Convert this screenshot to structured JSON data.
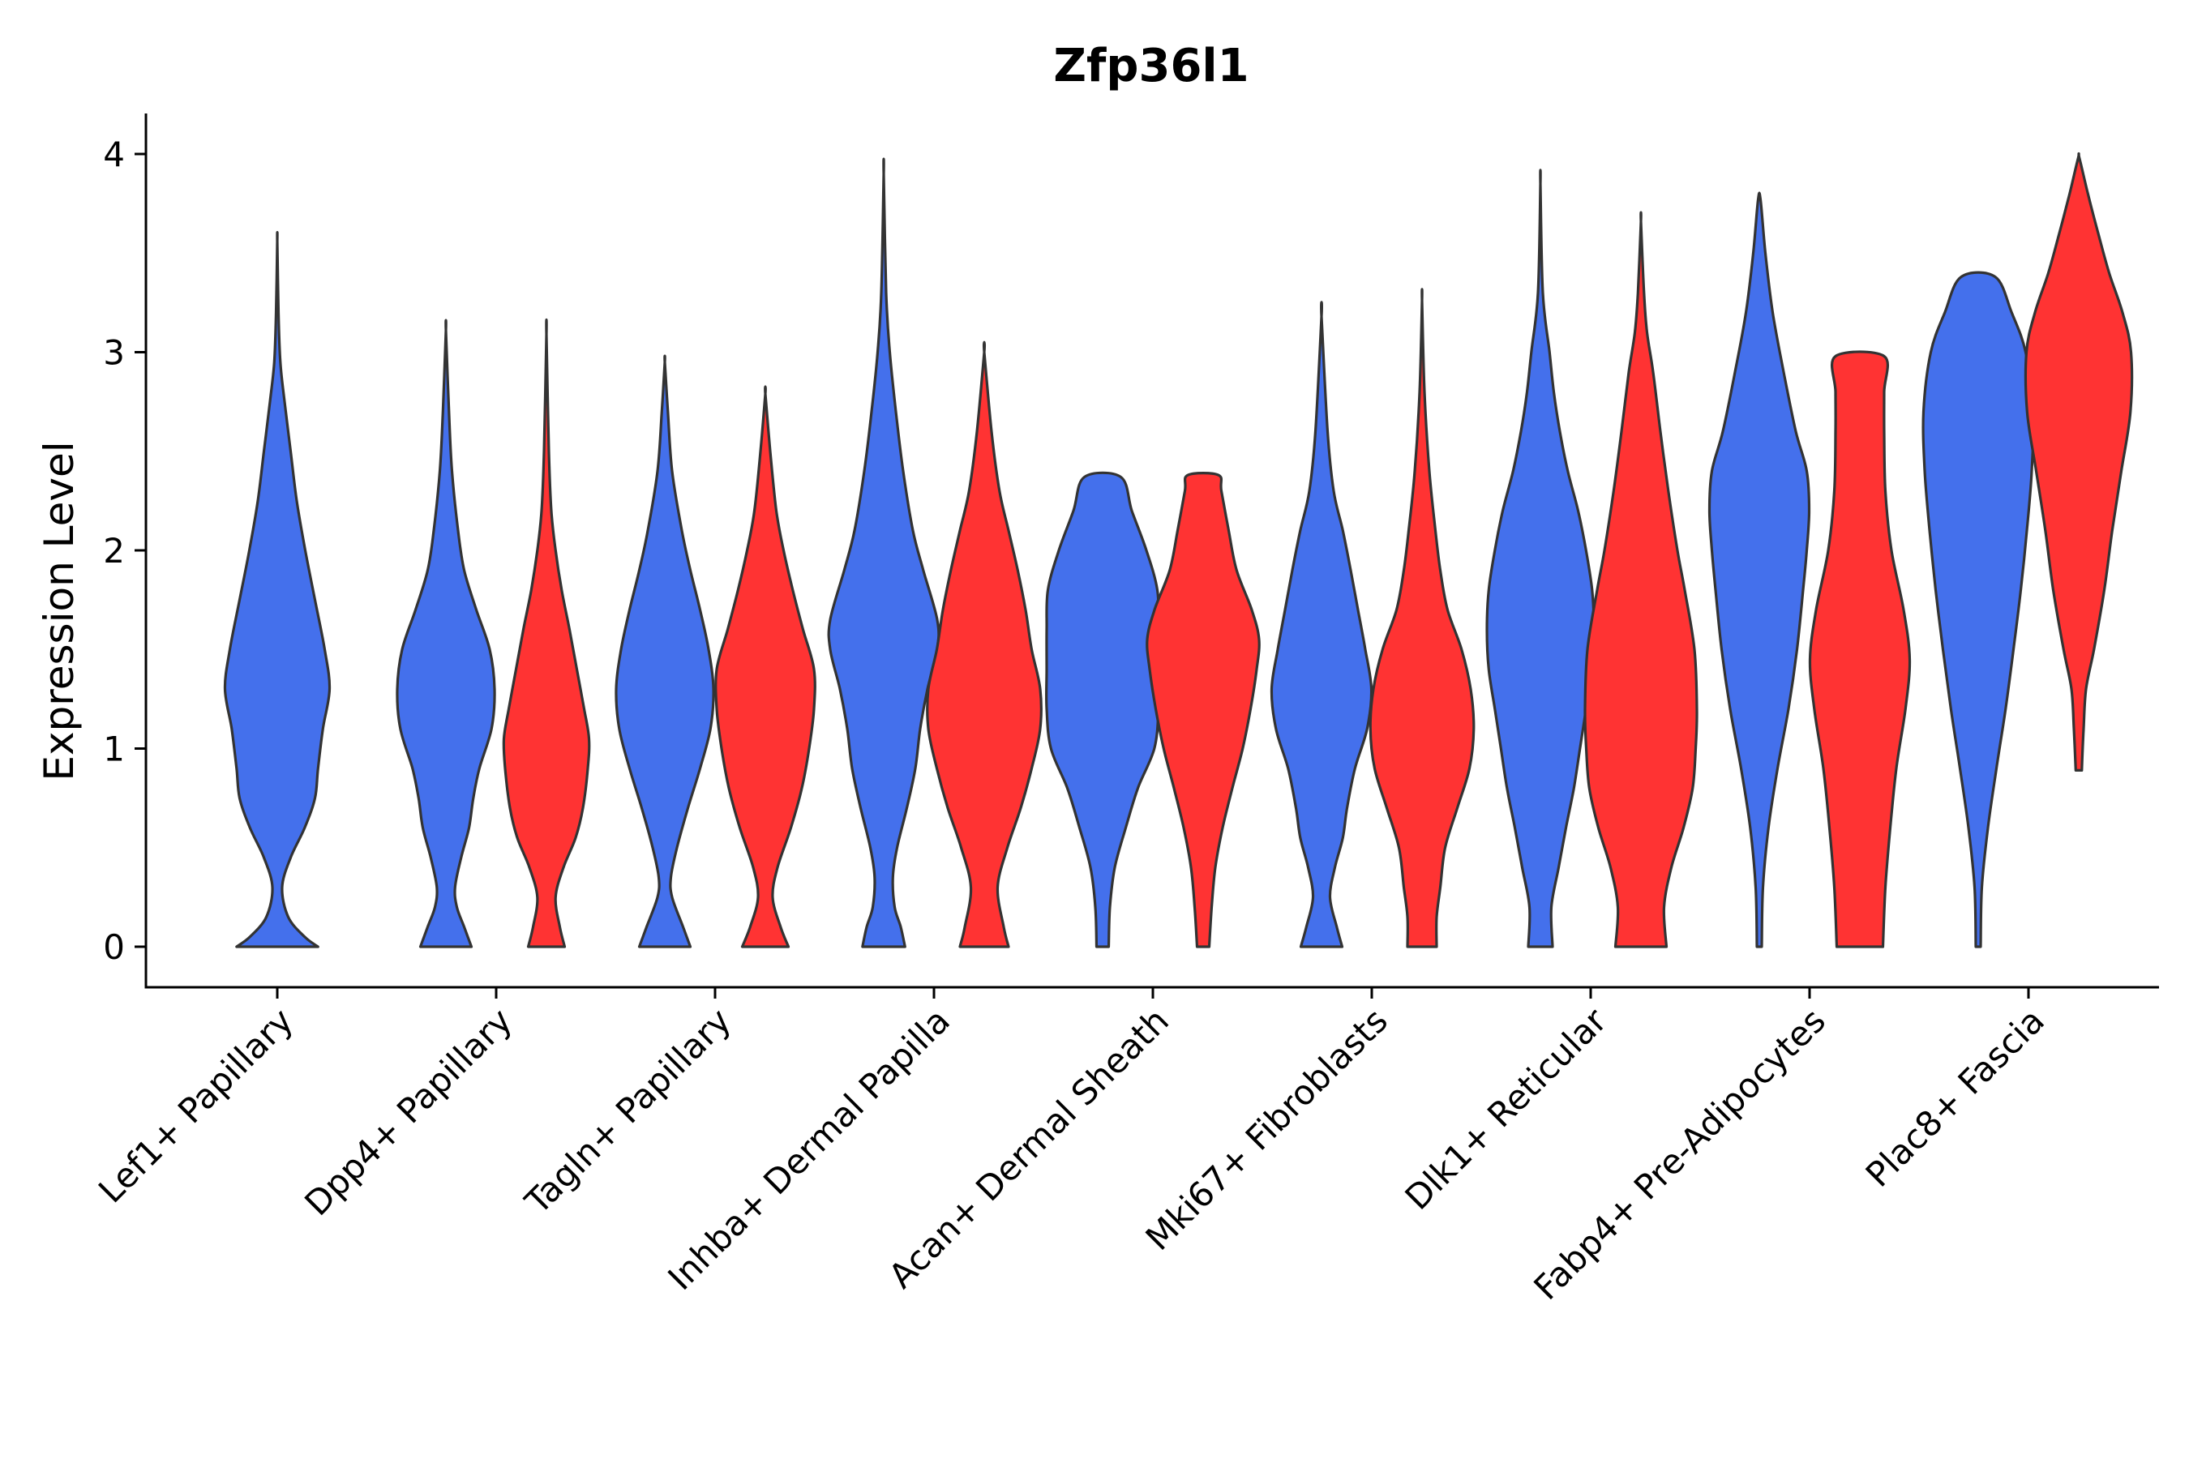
{
  "chart_data": {
    "type": "violin",
    "title": "Zfp36l1",
    "xlabel": "",
    "ylabel": "Expression Level",
    "ylim": [
      -0.2,
      4.2
    ],
    "yticks": [
      0,
      1,
      2,
      3,
      4
    ],
    "grid": false,
    "legend": "none",
    "colors": {
      "blue": "#4470EC",
      "red": "#FF3333"
    },
    "categories": [
      "Lef1+ Papillary",
      "Dpp4+ Papillary",
      "Tagln+ Papillary",
      "Inhba+ Dermal Papilla",
      "Acan+ Dermal Sheath",
      "Mki67+ Fibroblasts",
      "Dlk1+ Reticular",
      "Fabp4+ Pre-Adipocytes",
      "Plac8+ Fascia"
    ],
    "violins": [
      {
        "category": 0,
        "color": "blue",
        "min": 0,
        "max": 3.56,
        "profile": [
          [
            0,
            0.67
          ],
          [
            0.05,
            0.45
          ],
          [
            0.15,
            0.18
          ],
          [
            0.3,
            0.08
          ],
          [
            0.45,
            0.22
          ],
          [
            0.6,
            0.45
          ],
          [
            0.75,
            0.62
          ],
          [
            0.9,
            0.67
          ],
          [
            1.1,
            0.75
          ],
          [
            1.3,
            0.86
          ],
          [
            1.5,
            0.78
          ],
          [
            1.75,
            0.62
          ],
          [
            2,
            0.46
          ],
          [
            2.25,
            0.32
          ],
          [
            2.5,
            0.22
          ],
          [
            2.75,
            0.12
          ],
          [
            2.95,
            0.05
          ],
          [
            3.2,
            0.02
          ],
          [
            3.56,
            0
          ]
        ]
      },
      {
        "category": 1,
        "color": "blue",
        "min": 0,
        "max": 3.11,
        "profile": [
          [
            0,
            0.42
          ],
          [
            0.1,
            0.3
          ],
          [
            0.2,
            0.18
          ],
          [
            0.3,
            0.15
          ],
          [
            0.45,
            0.25
          ],
          [
            0.6,
            0.38
          ],
          [
            0.75,
            0.45
          ],
          [
            0.9,
            0.55
          ],
          [
            1.1,
            0.75
          ],
          [
            1.3,
            0.8
          ],
          [
            1.5,
            0.72
          ],
          [
            1.7,
            0.5
          ],
          [
            1.9,
            0.3
          ],
          [
            2.1,
            0.2
          ],
          [
            2.4,
            0.1
          ],
          [
            2.7,
            0.05
          ],
          [
            3.11,
            0
          ]
        ]
      },
      {
        "category": 1,
        "color": "red",
        "min": 0,
        "max": 3.09,
        "profile": [
          [
            0,
            0.3
          ],
          [
            0.1,
            0.22
          ],
          [
            0.25,
            0.15
          ],
          [
            0.4,
            0.28
          ],
          [
            0.55,
            0.48
          ],
          [
            0.7,
            0.6
          ],
          [
            0.9,
            0.68
          ],
          [
            1.05,
            0.7
          ],
          [
            1.2,
            0.62
          ],
          [
            1.4,
            0.5
          ],
          [
            1.6,
            0.38
          ],
          [
            1.8,
            0.25
          ],
          [
            2,
            0.15
          ],
          [
            2.2,
            0.08
          ],
          [
            2.5,
            0.04
          ],
          [
            3.09,
            0
          ]
        ]
      },
      {
        "category": 2,
        "color": "blue",
        "min": 0,
        "max": 2.95,
        "profile": [
          [
            0,
            0.42
          ],
          [
            0.1,
            0.3
          ],
          [
            0.25,
            0.12
          ],
          [
            0.35,
            0.1
          ],
          [
            0.5,
            0.2
          ],
          [
            0.7,
            0.38
          ],
          [
            0.9,
            0.58
          ],
          [
            1.1,
            0.75
          ],
          [
            1.3,
            0.8
          ],
          [
            1.5,
            0.72
          ],
          [
            1.7,
            0.58
          ],
          [
            1.9,
            0.42
          ],
          [
            2.1,
            0.28
          ],
          [
            2.4,
            0.12
          ],
          [
            2.7,
            0.05
          ],
          [
            2.95,
            0
          ]
        ]
      },
      {
        "category": 2,
        "color": "red",
        "min": 0,
        "max": 2.79,
        "profile": [
          [
            0,
            0.38
          ],
          [
            0.1,
            0.25
          ],
          [
            0.25,
            0.12
          ],
          [
            0.4,
            0.2
          ],
          [
            0.6,
            0.42
          ],
          [
            0.8,
            0.6
          ],
          [
            1,
            0.72
          ],
          [
            1.2,
            0.8
          ],
          [
            1.4,
            0.8
          ],
          [
            1.6,
            0.62
          ],
          [
            1.8,
            0.45
          ],
          [
            2,
            0.3
          ],
          [
            2.2,
            0.18
          ],
          [
            2.5,
            0.08
          ],
          [
            2.79,
            0
          ]
        ]
      },
      {
        "category": 3,
        "color": "blue",
        "min": 0,
        "max": 3.9,
        "profile": [
          [
            0,
            0.35
          ],
          [
            0.1,
            0.28
          ],
          [
            0.2,
            0.18
          ],
          [
            0.35,
            0.15
          ],
          [
            0.5,
            0.22
          ],
          [
            0.7,
            0.38
          ],
          [
            0.9,
            0.52
          ],
          [
            1.1,
            0.6
          ],
          [
            1.3,
            0.72
          ],
          [
            1.5,
            0.88
          ],
          [
            1.65,
            0.88
          ],
          [
            1.9,
            0.65
          ],
          [
            2.1,
            0.48
          ],
          [
            2.4,
            0.32
          ],
          [
            2.7,
            0.2
          ],
          [
            3,
            0.1
          ],
          [
            3.3,
            0.04
          ],
          [
            3.9,
            0
          ]
        ]
      },
      {
        "category": 3,
        "color": "red",
        "min": 0,
        "max": 3.0,
        "profile": [
          [
            0,
            0.4
          ],
          [
            0.1,
            0.32
          ],
          [
            0.3,
            0.22
          ],
          [
            0.5,
            0.38
          ],
          [
            0.7,
            0.6
          ],
          [
            0.9,
            0.78
          ],
          [
            1.1,
            0.92
          ],
          [
            1.3,
            0.92
          ],
          [
            1.5,
            0.78
          ],
          [
            1.7,
            0.68
          ],
          [
            1.9,
            0.55
          ],
          [
            2.1,
            0.4
          ],
          [
            2.3,
            0.25
          ],
          [
            2.6,
            0.12
          ],
          [
            3,
            0
          ]
        ]
      },
      {
        "category": 4,
        "color": "blue",
        "min": 0,
        "max": 2.37,
        "profile": [
          [
            0,
            0.1
          ],
          [
            0.2,
            0.12
          ],
          [
            0.4,
            0.2
          ],
          [
            0.6,
            0.38
          ],
          [
            0.8,
            0.58
          ],
          [
            1,
            0.85
          ],
          [
            1.2,
            0.92
          ],
          [
            1.4,
            0.92
          ],
          [
            1.6,
            0.92
          ],
          [
            1.8,
            0.9
          ],
          [
            2,
            0.72
          ],
          [
            2.2,
            0.48
          ],
          [
            2.37,
            0.3
          ]
        ]
      },
      {
        "category": 4,
        "color": "red",
        "min": 0,
        "max": 2.38,
        "profile": [
          [
            0,
            0.1
          ],
          [
            0.2,
            0.14
          ],
          [
            0.4,
            0.2
          ],
          [
            0.6,
            0.32
          ],
          [
            0.8,
            0.48
          ],
          [
            1,
            0.65
          ],
          [
            1.2,
            0.78
          ],
          [
            1.4,
            0.88
          ],
          [
            1.55,
            0.92
          ],
          [
            1.7,
            0.8
          ],
          [
            1.9,
            0.55
          ],
          [
            2.1,
            0.42
          ],
          [
            2.3,
            0.3
          ],
          [
            2.38,
            0.25
          ]
        ]
      },
      {
        "category": 5,
        "color": "blue",
        "min": 0,
        "max": 3.18,
        "profile": [
          [
            0,
            0.34
          ],
          [
            0.1,
            0.25
          ],
          [
            0.25,
            0.14
          ],
          [
            0.4,
            0.22
          ],
          [
            0.55,
            0.35
          ],
          [
            0.7,
            0.42
          ],
          [
            0.9,
            0.55
          ],
          [
            1.1,
            0.75
          ],
          [
            1.3,
            0.82
          ],
          [
            1.5,
            0.72
          ],
          [
            1.7,
            0.6
          ],
          [
            1.9,
            0.48
          ],
          [
            2.1,
            0.35
          ],
          [
            2.3,
            0.2
          ],
          [
            2.6,
            0.1
          ],
          [
            3.18,
            0
          ]
        ]
      },
      {
        "category": 5,
        "color": "red",
        "min": 0,
        "max": 3.26,
        "profile": [
          [
            0,
            0.24
          ],
          [
            0.15,
            0.24
          ],
          [
            0.3,
            0.3
          ],
          [
            0.5,
            0.38
          ],
          [
            0.7,
            0.58
          ],
          [
            0.9,
            0.78
          ],
          [
            1.1,
            0.85
          ],
          [
            1.3,
            0.8
          ],
          [
            1.5,
            0.65
          ],
          [
            1.7,
            0.42
          ],
          [
            1.9,
            0.3
          ],
          [
            2.1,
            0.22
          ],
          [
            2.4,
            0.12
          ],
          [
            2.8,
            0.04
          ],
          [
            3.26,
            0
          ]
        ]
      },
      {
        "category": 6,
        "color": "blue",
        "min": 0,
        "max": 3.85,
        "profile": [
          [
            0,
            0.2
          ],
          [
            0.2,
            0.18
          ],
          [
            0.4,
            0.3
          ],
          [
            0.6,
            0.42
          ],
          [
            0.8,
            0.55
          ],
          [
            1,
            0.65
          ],
          [
            1.2,
            0.75
          ],
          [
            1.4,
            0.85
          ],
          [
            1.6,
            0.88
          ],
          [
            1.8,
            0.85
          ],
          [
            2,
            0.75
          ],
          [
            2.2,
            0.62
          ],
          [
            2.4,
            0.45
          ],
          [
            2.6,
            0.32
          ],
          [
            2.8,
            0.22
          ],
          [
            3,
            0.15
          ],
          [
            3.3,
            0.04
          ],
          [
            3.85,
            0
          ]
        ]
      },
      {
        "category": 6,
        "color": "red",
        "min": 0,
        "max": 3.66,
        "profile": [
          [
            0,
            0.42
          ],
          [
            0.2,
            0.38
          ],
          [
            0.4,
            0.5
          ],
          [
            0.6,
            0.7
          ],
          [
            0.8,
            0.85
          ],
          [
            1,
            0.9
          ],
          [
            1.2,
            0.92
          ],
          [
            1.5,
            0.88
          ],
          [
            1.8,
            0.72
          ],
          [
            2,
            0.6
          ],
          [
            2.3,
            0.45
          ],
          [
            2.6,
            0.32
          ],
          [
            2.9,
            0.2
          ],
          [
            3.1,
            0.1
          ],
          [
            3.3,
            0.05
          ],
          [
            3.66,
            0
          ]
        ]
      },
      {
        "category": 7,
        "color": "blue",
        "min": 0,
        "max": 3.77,
        "profile": [
          [
            0,
            0.04
          ],
          [
            0.3,
            0.06
          ],
          [
            0.6,
            0.15
          ],
          [
            0.9,
            0.3
          ],
          [
            1.2,
            0.48
          ],
          [
            1.5,
            0.62
          ],
          [
            1.8,
            0.72
          ],
          [
            2,
            0.78
          ],
          [
            2.2,
            0.82
          ],
          [
            2.4,
            0.78
          ],
          [
            2.6,
            0.6
          ],
          [
            2.9,
            0.4
          ],
          [
            3.2,
            0.22
          ],
          [
            3.5,
            0.1
          ],
          [
            3.77,
            0.02
          ]
        ]
      },
      {
        "category": 7,
        "color": "red",
        "min": 0,
        "max": 2.98,
        "profile": [
          [
            0,
            0.38
          ],
          [
            0.3,
            0.42
          ],
          [
            0.6,
            0.5
          ],
          [
            0.9,
            0.6
          ],
          [
            1.2,
            0.75
          ],
          [
            1.45,
            0.82
          ],
          [
            1.7,
            0.72
          ],
          [
            2,
            0.52
          ],
          [
            2.3,
            0.42
          ],
          [
            2.6,
            0.4
          ],
          [
            2.8,
            0.4
          ],
          [
            2.98,
            0.4
          ]
        ]
      },
      {
        "category": 8,
        "color": "blue",
        "min": 0,
        "max": 3.38,
        "profile": [
          [
            0,
            0.04
          ],
          [
            0.3,
            0.06
          ],
          [
            0.6,
            0.16
          ],
          [
            0.9,
            0.3
          ],
          [
            1.2,
            0.45
          ],
          [
            1.5,
            0.58
          ],
          [
            1.8,
            0.7
          ],
          [
            2.1,
            0.8
          ],
          [
            2.4,
            0.88
          ],
          [
            2.7,
            0.9
          ],
          [
            3,
            0.78
          ],
          [
            3.2,
            0.55
          ],
          [
            3.38,
            0.28
          ]
        ]
      },
      {
        "category": 8,
        "color": "red",
        "min": 0.89,
        "max": 3.98,
        "profile": [
          [
            0.89,
            0.05
          ],
          [
            1.1,
            0.08
          ],
          [
            1.3,
            0.12
          ],
          [
            1.5,
            0.25
          ],
          [
            1.8,
            0.42
          ],
          [
            2.1,
            0.55
          ],
          [
            2.4,
            0.7
          ],
          [
            2.7,
            0.85
          ],
          [
            3,
            0.86
          ],
          [
            3.2,
            0.72
          ],
          [
            3.4,
            0.5
          ],
          [
            3.6,
            0.32
          ],
          [
            3.8,
            0.15
          ],
          [
            3.98,
            0.01
          ]
        ]
      }
    ]
  }
}
